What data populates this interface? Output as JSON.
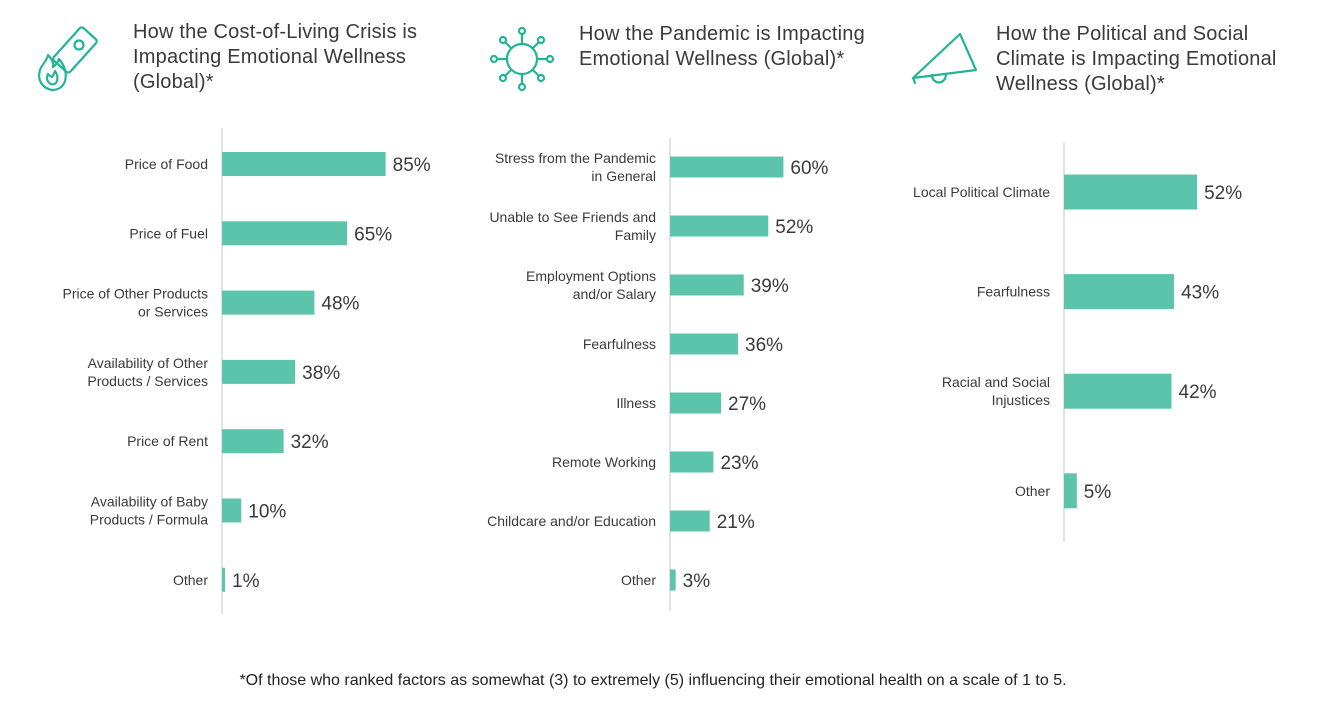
{
  "footnote": "*Of those who ranked factors as somewhat (3) to extremely (5) influencing their emotional health on a scale of 1 to 5.",
  "colors": {
    "bar": "#5bc4aa",
    "icon": "#22b496",
    "axis": "#d9d9d9",
    "text": "#3a3a3a"
  },
  "chart_data": [
    {
      "type": "bar",
      "orientation": "horizontal",
      "icon": "money-fire-icon",
      "title": "How the Cost-of-Living Crisis is Impacting Emotional Wellness (Global)*",
      "categories": [
        "Price of Food",
        "Price of Fuel",
        "Price of Other Products or Services",
        "Availability of Other Products / Services",
        "Price of Rent",
        "Availability of Baby Products / Formula",
        "Other"
      ],
      "category_lines": [
        [
          "Price of Food"
        ],
        [
          "Price of Fuel"
        ],
        [
          "Price of Other Products",
          "or Services"
        ],
        [
          "Availability of Other",
          "Products / Services"
        ],
        [
          "Price of Rent"
        ],
        [
          "Availability of Baby",
          "Products / Formula"
        ],
        [
          "Other"
        ]
      ],
      "values": [
        85,
        65,
        48,
        38,
        32,
        10,
        1
      ],
      "value_labels": [
        "85%",
        "65%",
        "48%",
        "38%",
        "32%",
        "10%",
        "1%"
      ],
      "unit": "%",
      "xlim": [
        0,
        100
      ],
      "grid": false
    },
    {
      "type": "bar",
      "orientation": "horizontal",
      "icon": "virus-icon",
      "title": "How the Pandemic is Impacting Emotional Wellness (Global)*",
      "categories": [
        "Stress from the Pandemic in General",
        "Unable to See Friends and Family",
        "Employment Options and/or Salary",
        "Fearfulness",
        "Illness",
        "Remote Working",
        "Childcare and/or Education",
        "Other"
      ],
      "category_lines": [
        [
          "Stress from the Pandemic",
          "in General"
        ],
        [
          "Unable to See Friends and",
          "Family"
        ],
        [
          "Employment Options",
          "and/or Salary"
        ],
        [
          "Fearfulness"
        ],
        [
          "Illness"
        ],
        [
          "Remote Working"
        ],
        [
          "Childcare and/or Education"
        ],
        [
          "Other"
        ]
      ],
      "values": [
        60,
        52,
        39,
        36,
        27,
        23,
        21,
        3
      ],
      "value_labels": [
        "60%",
        "52%",
        "39%",
        "36%",
        "27%",
        "23%",
        "21%",
        "3%"
      ],
      "unit": "%",
      "xlim": [
        0,
        100
      ],
      "grid": false
    },
    {
      "type": "bar",
      "orientation": "horizontal",
      "icon": "megaphone-icon",
      "title": "How the Political and Social Climate is Impacting Emotional Wellness (Global)*",
      "categories": [
        "Local Political Climate",
        "Fearfulness",
        "Racial and Social Injustices",
        "Other"
      ],
      "category_lines": [
        [
          "Local Political Climate"
        ],
        [
          "Fearfulness"
        ],
        [
          "Racial and Social",
          "Injustices"
        ],
        [
          "Other"
        ]
      ],
      "values": [
        52,
        43,
        42,
        5
      ],
      "value_labels": [
        "52%",
        "43%",
        "42%",
        "5%"
      ],
      "unit": "%",
      "xlim": [
        0,
        100
      ],
      "grid": false
    }
  ]
}
